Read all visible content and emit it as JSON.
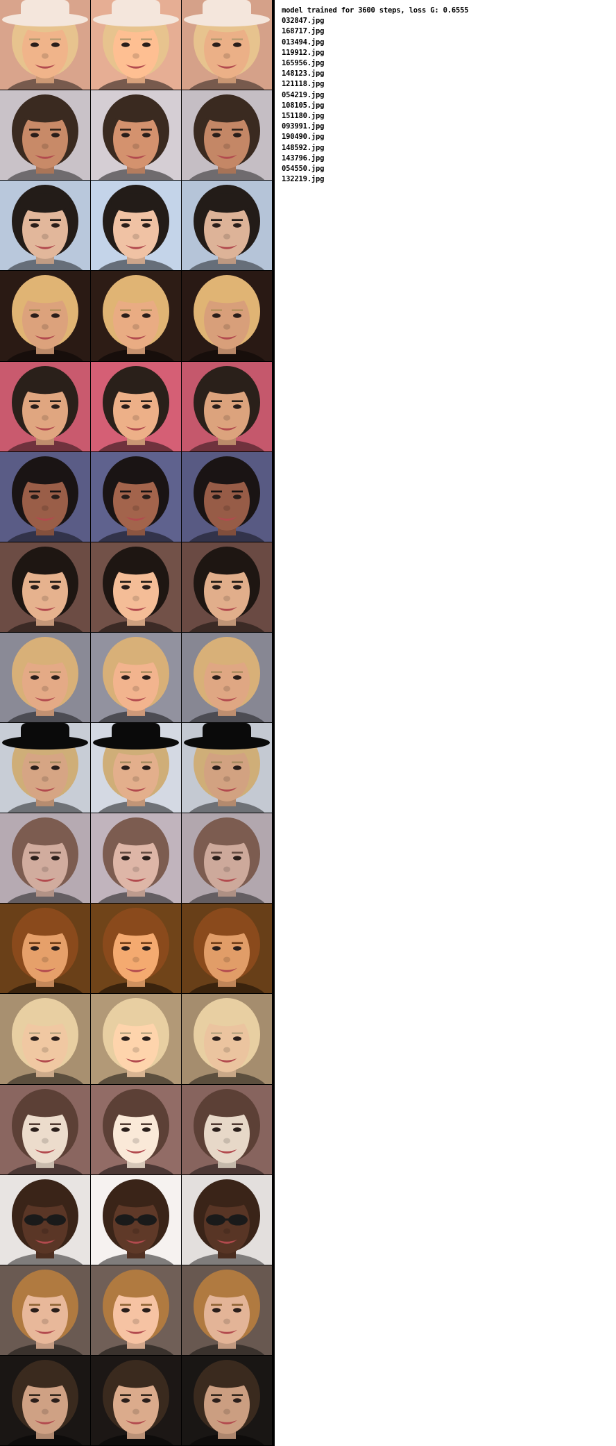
{
  "caption": "model trained for 3600 steps, loss G: 0.6555",
  "files": [
    "032847.jpg",
    "168717.jpg",
    "013494.jpg",
    "119912.jpg",
    "165956.jpg",
    "148123.jpg",
    "121118.jpg",
    "054219.jpg",
    "108105.jpg",
    "151180.jpg",
    "093991.jpg",
    "190490.jpg",
    "148592.jpg",
    "143796.jpg",
    "054550.jpg",
    "132219.jpg"
  ],
  "column_roles": [
    "input",
    "output",
    "target"
  ],
  "rows": [
    {
      "bg": "#d9a48c",
      "skin": "#f0b48a",
      "hair": "#e7c38e",
      "hat": "#f4e6dc"
    },
    {
      "bg": "#c9c2c8",
      "skin": "#c88a68",
      "hair": "#3a2a20"
    },
    {
      "bg": "#b9c8dc",
      "skin": "#e2b79b",
      "hair": "#231c18"
    },
    {
      "bg": "#2a1a14",
      "skin": "#dca27c",
      "hair": "#e0b474"
    },
    {
      "bg": "#c95a6e",
      "skin": "#e0a680",
      "hair": "#2a201a"
    },
    {
      "bg": "#5a5c86",
      "skin": "#9a5e48",
      "hair": "#1a1414"
    },
    {
      "bg": "#6c4c44",
      "skin": "#e6b28e",
      "hair": "#1e1612"
    },
    {
      "bg": "#8a8a96",
      "skin": "#e4aa86",
      "hair": "#d8b078"
    },
    {
      "bg": "#c8cdd6",
      "skin": "#d6a584",
      "hair": "#cfae78",
      "hat": "#0a0a0a"
    },
    {
      "bg": "#b6aab2",
      "skin": "#d1ac9e",
      "hair": "#7c5c50"
    },
    {
      "bg": "#6a4018",
      "skin": "#e6a06a",
      "hair": "#8a4a1c"
    },
    {
      "bg": "#a89070",
      "skin": "#f0c8a2",
      "hair": "#e8cfa2"
    },
    {
      "bg": "#8a6660",
      "skin": "#ecdccc",
      "hair": "#5c4036"
    },
    {
      "bg": "#e8e4e2",
      "skin": "#5a3626",
      "hair": "#3a2418",
      "glasses": "#1a1a1a"
    },
    {
      "bg": "#6a5a52",
      "skin": "#e8b89a",
      "hair": "#b07a40"
    },
    {
      "bg": "#1a1614",
      "skin": "#cfa184",
      "hair": "#3a2a1e"
    }
  ]
}
